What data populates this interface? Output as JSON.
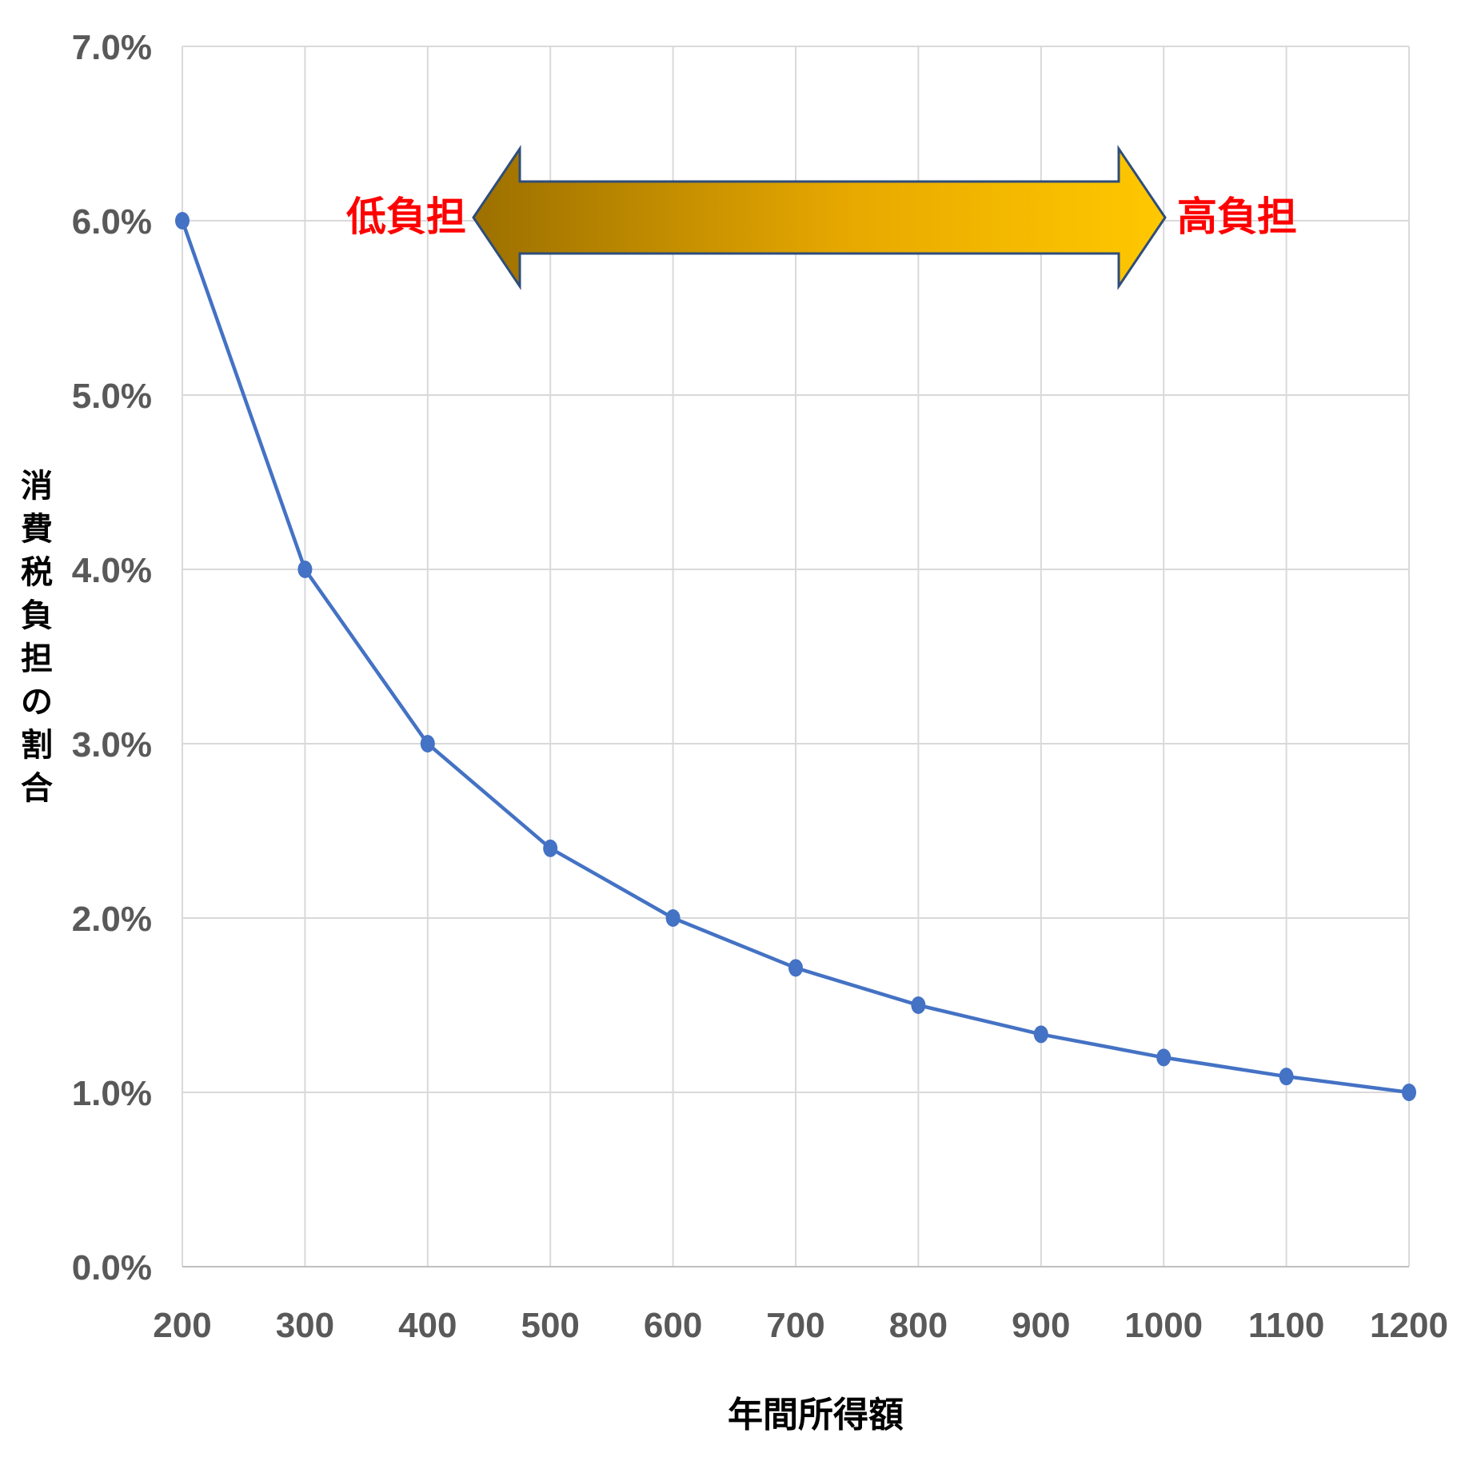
{
  "chart_data": {
    "type": "line",
    "xlabel": "年間所得額",
    "ylabel": "消費税負担の割合",
    "x": [
      200,
      300,
      400,
      500,
      600,
      700,
      800,
      900,
      1000,
      1100,
      1200
    ],
    "x_tick_labels": [
      "200",
      "300",
      "400",
      "500",
      "600",
      "700",
      "800",
      "900",
      "1000",
      "1100",
      "1200"
    ],
    "y_tick_labels": [
      "0.0%",
      "1.0%",
      "2.0%",
      "3.0%",
      "4.0%",
      "5.0%",
      "6.0%",
      "7.0%"
    ],
    "ylim": [
      0,
      7
    ],
    "xlim": [
      200,
      1200
    ],
    "grid": true,
    "series": [
      {
        "values": [
          6.0,
          4.0,
          3.0,
          2.4,
          2.0,
          1.714,
          1.5,
          1.333,
          1.2,
          1.091,
          1.0
        ],
        "color": "#4472c4"
      }
    ],
    "annotations": {
      "left_label": "低負担",
      "right_label": "高負担",
      "arrow_gradient": [
        "#9c7000",
        "#e8a900",
        "#ffc800"
      ]
    }
  }
}
